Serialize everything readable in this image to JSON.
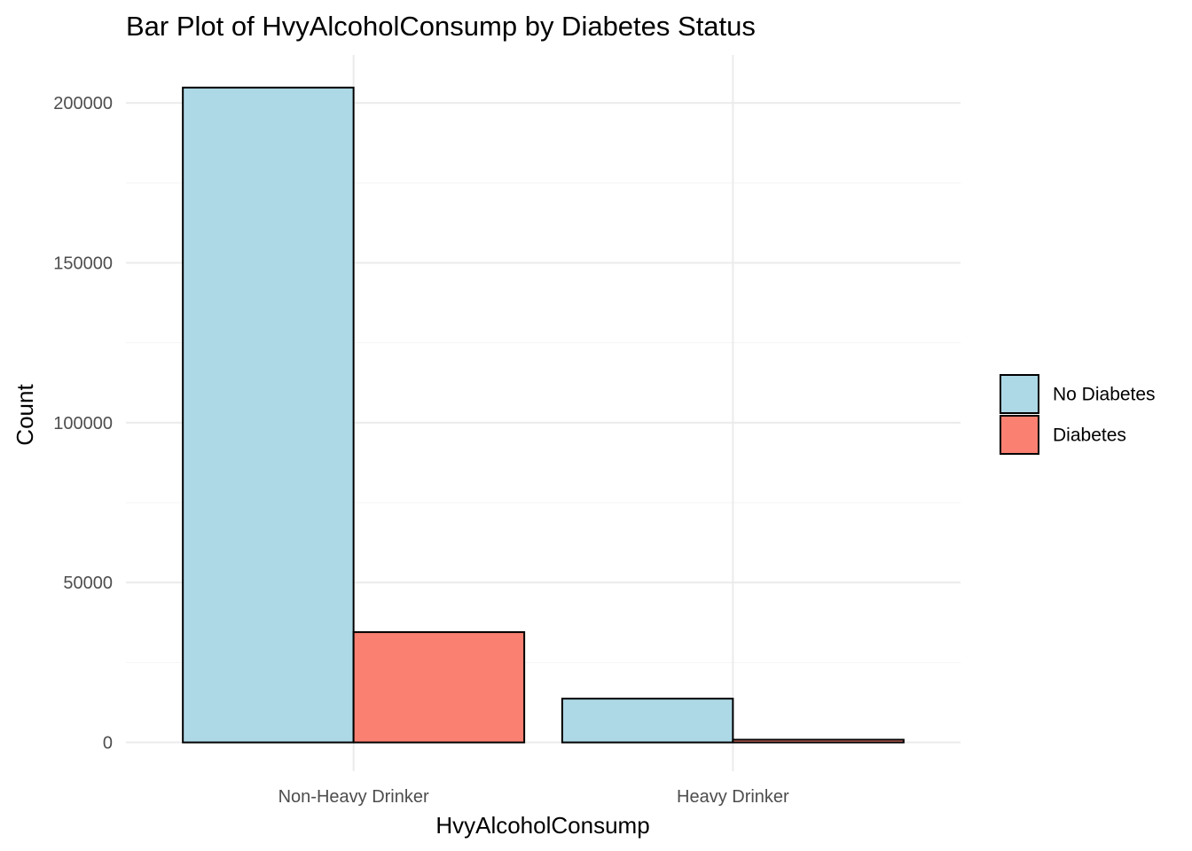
{
  "chart_data": {
    "type": "bar",
    "title": "Bar Plot of HvyAlcoholConsump by Diabetes Status",
    "xlabel": "HvyAlcoholConsump",
    "ylabel": "Count",
    "categories": [
      "Non-Heavy Drinker",
      "Heavy Drinker"
    ],
    "series": [
      {
        "name": "No Diabetes",
        "values": [
          204800,
          13700
        ],
        "color": "#add8e6"
      },
      {
        "name": "Diabetes",
        "values": [
          34500,
          850
        ],
        "color": "#fa8072"
      }
    ],
    "yticks": [
      0,
      50000,
      100000,
      150000,
      200000
    ],
    "ylim": [
      -9000,
      215000
    ],
    "grid": true,
    "legend_position": "right",
    "bar_style": "dodged"
  }
}
